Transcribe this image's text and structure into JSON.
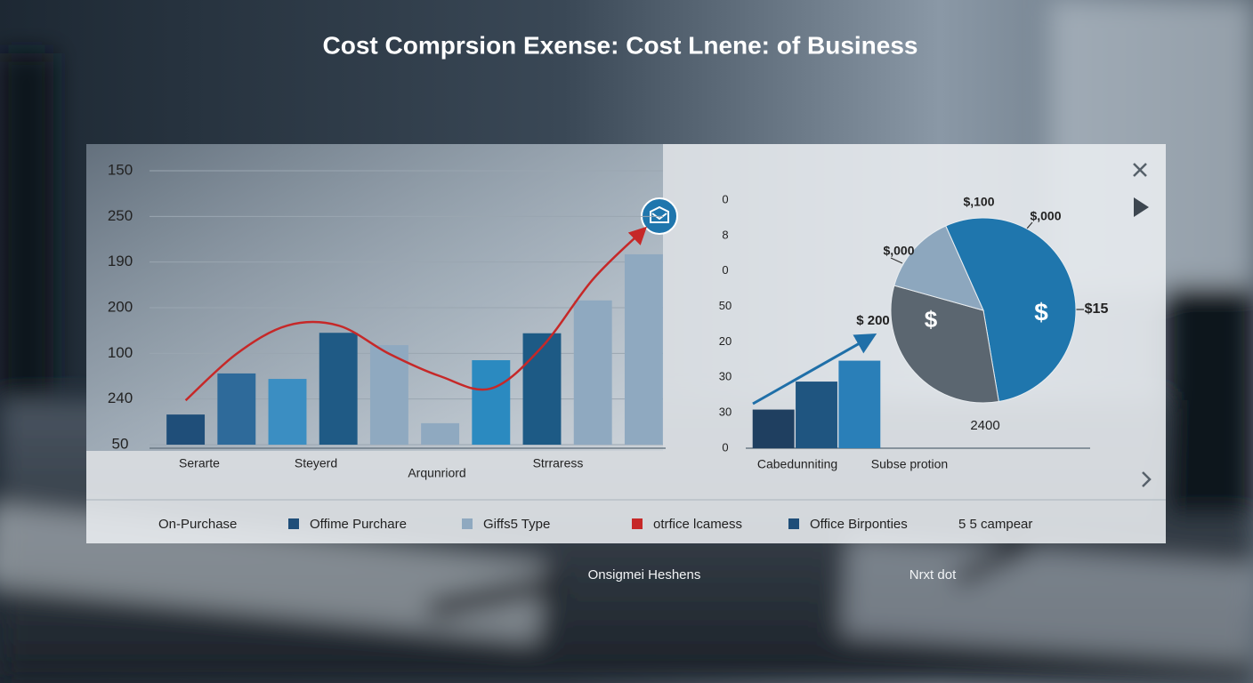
{
  "title": "Cost Comprsion Exense: Cost Lnene: of Business",
  "chart_data": [
    {
      "type": "bar",
      "categories": [
        "Serarte",
        null,
        null,
        "Steyerd",
        null,
        "Arqunriord",
        null,
        "Strraress",
        null,
        null
      ],
      "values": [
        0.66,
        1.56,
        1.44,
        2.45,
        2.18,
        0.47,
        1.85,
        2.44,
        3.16,
        4.17
      ],
      "colors": [
        "#1f4e79",
        "#2e6a9a",
        "#3b8ec2",
        "#1f5a85",
        "#8fa9c0",
        "#8fa9c0",
        "#2b8ac0",
        "#1d5a85",
        "#8fa9c0",
        "#8fa9c0"
      ],
      "line": {
        "color": "#c62828",
        "values": [
          0.97,
          1.99,
          2.61,
          2.61,
          1.99,
          1.5,
          1.23,
          2.14,
          3.62,
          4.71
        ]
      },
      "ylim": [
        0,
        6
      ],
      "yticks": [
        {
          "value": 6,
          "label": "150"
        },
        {
          "value": 5,
          "label": "250"
        },
        {
          "value": 4,
          "label": "190"
        },
        {
          "value": 3,
          "label": "200"
        },
        {
          "value": 2,
          "label": "100"
        },
        {
          "value": 1,
          "label": "240"
        },
        {
          "value": 0,
          "label": "50"
        }
      ],
      "grid": true
    },
    {
      "type": "bar",
      "categories": [
        "Cabedunniting",
        null,
        "Subse protion"
      ],
      "values": [
        1.09,
        1.88,
        2.47
      ],
      "colors": [
        "#1f3f60",
        "#1f5580",
        "#2a7fb8"
      ],
      "ylim": [
        0,
        7
      ],
      "yticks": [
        {
          "value": 7,
          "label": "0"
        },
        {
          "value": 6,
          "label": "8"
        },
        {
          "value": 5,
          "label": "0"
        },
        {
          "value": 4,
          "label": "50"
        },
        {
          "value": 3,
          "label": "20"
        },
        {
          "value": 2,
          "label": "30"
        },
        {
          "value": 1,
          "label": "30"
        },
        0
      ],
      "grid": false
    },
    {
      "type": "pie",
      "values": [
        54,
        32,
        14
      ],
      "colors": [
        "#1f76ad",
        "#5b6670",
        "#8da7be"
      ],
      "annotations": [
        "$,100",
        "$,000",
        "$,000",
        "$ 200",
        "$15",
        "2400",
        "$",
        "$"
      ]
    }
  ],
  "legend": [
    {
      "label": "On-Purchase"
    },
    {
      "label": "Offime Purchare",
      "color": "#1f4e79"
    },
    {
      "label": "Giffs5 Type",
      "color": "#8fa9c0"
    },
    {
      "label": "otrfice lcamess",
      "color": "#c62828"
    },
    {
      "label": "Office Birponties",
      "color": "#1f4e79"
    },
    {
      "label": "5 5 campear"
    }
  ],
  "footer": [
    "Onsigmei Heshens",
    "Nrxt dot"
  ]
}
